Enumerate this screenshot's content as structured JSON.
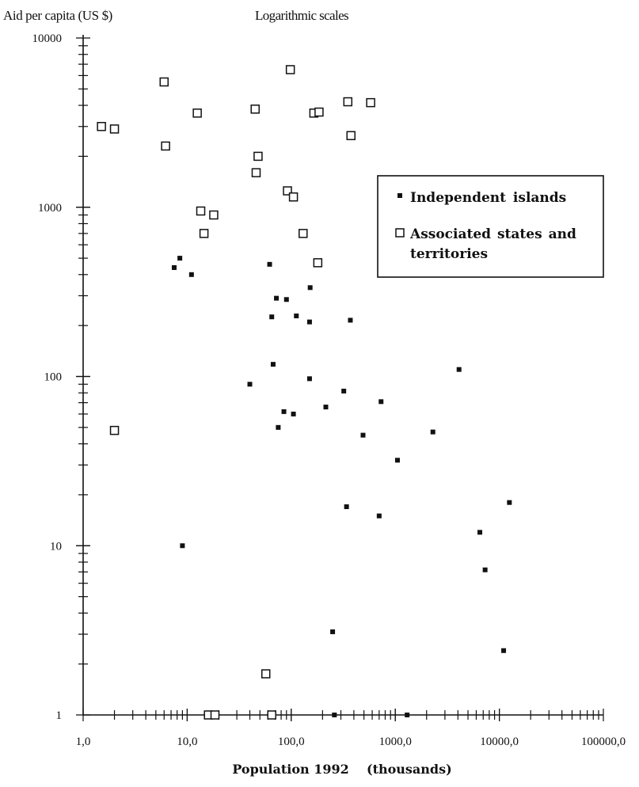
{
  "chart_data": {
    "type": "scatter",
    "title": "Logarithmic scales",
    "xlabel": "Population 1992    (thousands)",
    "ylabel": "Aid per capita (US $)",
    "x_scale": "log",
    "y_scale": "log",
    "xlim": [
      1,
      100000
    ],
    "ylim": [
      1,
      10000
    ],
    "x_tick_values": [
      1,
      10,
      100,
      1000,
      10000,
      100000
    ],
    "x_tick_labels": [
      "1,0",
      "10,0",
      "100,0",
      "1000,0",
      "10000,0",
      "100000,0"
    ],
    "y_tick_values": [
      1,
      10,
      100,
      1000,
      10000
    ],
    "y_tick_labels": [
      "1",
      "10",
      "100",
      "1000",
      "10000"
    ],
    "grid": false,
    "legend_position": "right",
    "series": [
      {
        "name": "Independent islands",
        "marker": "filled-square",
        "color": "#111111",
        "points": [
          [
            7.5,
            440
          ],
          [
            8.5,
            500
          ],
          [
            11,
            400
          ],
          [
            9,
            10
          ],
          [
            40,
            90
          ],
          [
            62,
            460
          ],
          [
            65,
            225
          ],
          [
            67,
            118
          ],
          [
            72,
            290
          ],
          [
            75,
            50
          ],
          [
            85,
            62
          ],
          [
            90,
            285
          ],
          [
            105,
            60
          ],
          [
            112,
            228
          ],
          [
            150,
            210
          ],
          [
            152,
            335
          ],
          [
            150,
            97
          ],
          [
            215,
            66
          ],
          [
            250,
            3.1
          ],
          [
            260,
            1
          ],
          [
            320,
            82
          ],
          [
            340,
            17
          ],
          [
            370,
            215
          ],
          [
            490,
            45
          ],
          [
            700,
            15
          ],
          [
            730,
            71
          ],
          [
            1050,
            32
          ],
          [
            1300,
            1
          ],
          [
            2300,
            47
          ],
          [
            4100,
            110
          ],
          [
            6500,
            12
          ],
          [
            7300,
            7.2
          ],
          [
            11000,
            2.4
          ],
          [
            12500,
            18
          ]
        ]
      },
      {
        "name": "Associated states and territories",
        "marker": "hollow-square",
        "color": "#111111",
        "points": [
          [
            1.5,
            3000
          ],
          [
            2,
            2900
          ],
          [
            2,
            48
          ],
          [
            6,
            5500
          ],
          [
            6.2,
            2300
          ],
          [
            12.5,
            3600
          ],
          [
            13.5,
            950
          ],
          [
            14.5,
            700
          ],
          [
            16,
            1
          ],
          [
            18,
            900
          ],
          [
            18.5,
            1
          ],
          [
            45,
            3800
          ],
          [
            46,
            1600
          ],
          [
            48,
            2000
          ],
          [
            57,
            1.75
          ],
          [
            65,
            1
          ],
          [
            92,
            1250
          ],
          [
            98,
            6500
          ],
          [
            105,
            1150
          ],
          [
            130,
            700
          ],
          [
            165,
            3600
          ],
          [
            185,
            3650
          ],
          [
            180,
            470
          ],
          [
            350,
            4200
          ],
          [
            375,
            2650
          ],
          [
            580,
            4150
          ]
        ]
      }
    ]
  }
}
